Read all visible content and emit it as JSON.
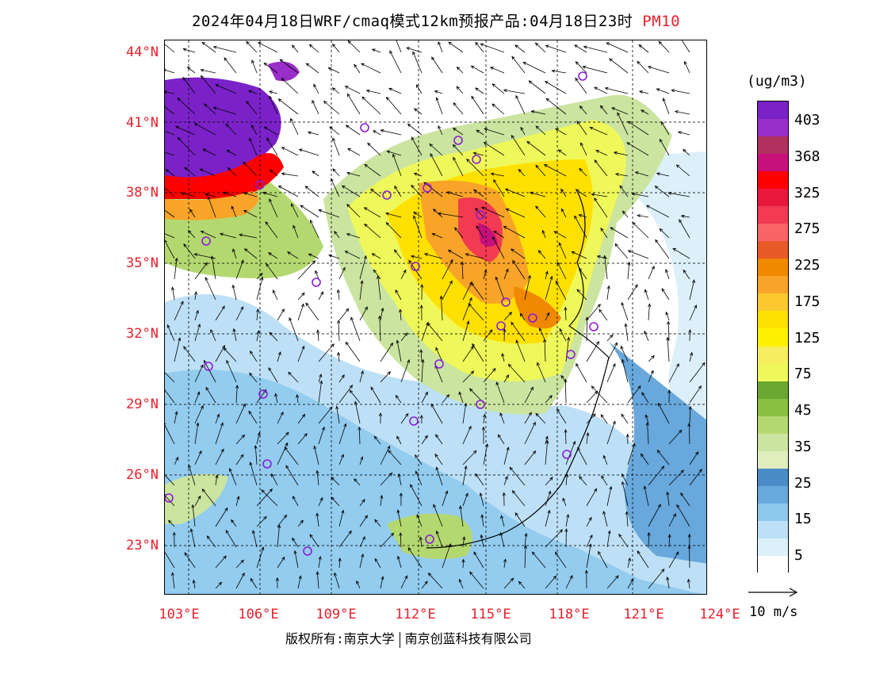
{
  "title": {
    "text": "2024年04月18日WRF/cmaq模式12km预报产品:04月18日23时",
    "pollutant": "PM10"
  },
  "map": {
    "lat_labels": [
      "44°N",
      "41°N",
      "38°N",
      "35°N",
      "32°N",
      "29°N",
      "26°N",
      "23°N"
    ],
    "lon_labels": [
      "103°E",
      "106°E",
      "109°E",
      "112°E",
      "115°E",
      "118°E",
      "121°E",
      "124°E"
    ],
    "station_marker_color": "#8a1cd8"
  },
  "legend": {
    "unit": "(ug/m3)",
    "labels": [
      "403",
      "368",
      "325",
      "275",
      "225",
      "175",
      "125",
      "75",
      "45",
      "35",
      "25",
      "15",
      "5"
    ],
    "colors": [
      "#7a22c8",
      "#9a2ec8",
      "#b23060",
      "#c8107a",
      "#ff0000",
      "#e8183c",
      "#f23a52",
      "#fa6464",
      "#e85a28",
      "#f08800",
      "#f8a428",
      "#fbc830",
      "#ffe000",
      "#fff000",
      "#f6ee60",
      "#eef85a",
      "#6aa832",
      "#88c040",
      "#b4d870",
      "#cbe4a0",
      "#dfeebc",
      "#4a8cc8",
      "#68a8dc",
      "#8cc8ec",
      "#bde0f6",
      "#dcf0fa",
      "#ffffff"
    ]
  },
  "wind_reference": {
    "label": "10 m/s"
  },
  "footer": {
    "copyright_left": "版权所有:南京大学",
    "copyright_right": "南京创蓝科技有限公司"
  }
}
